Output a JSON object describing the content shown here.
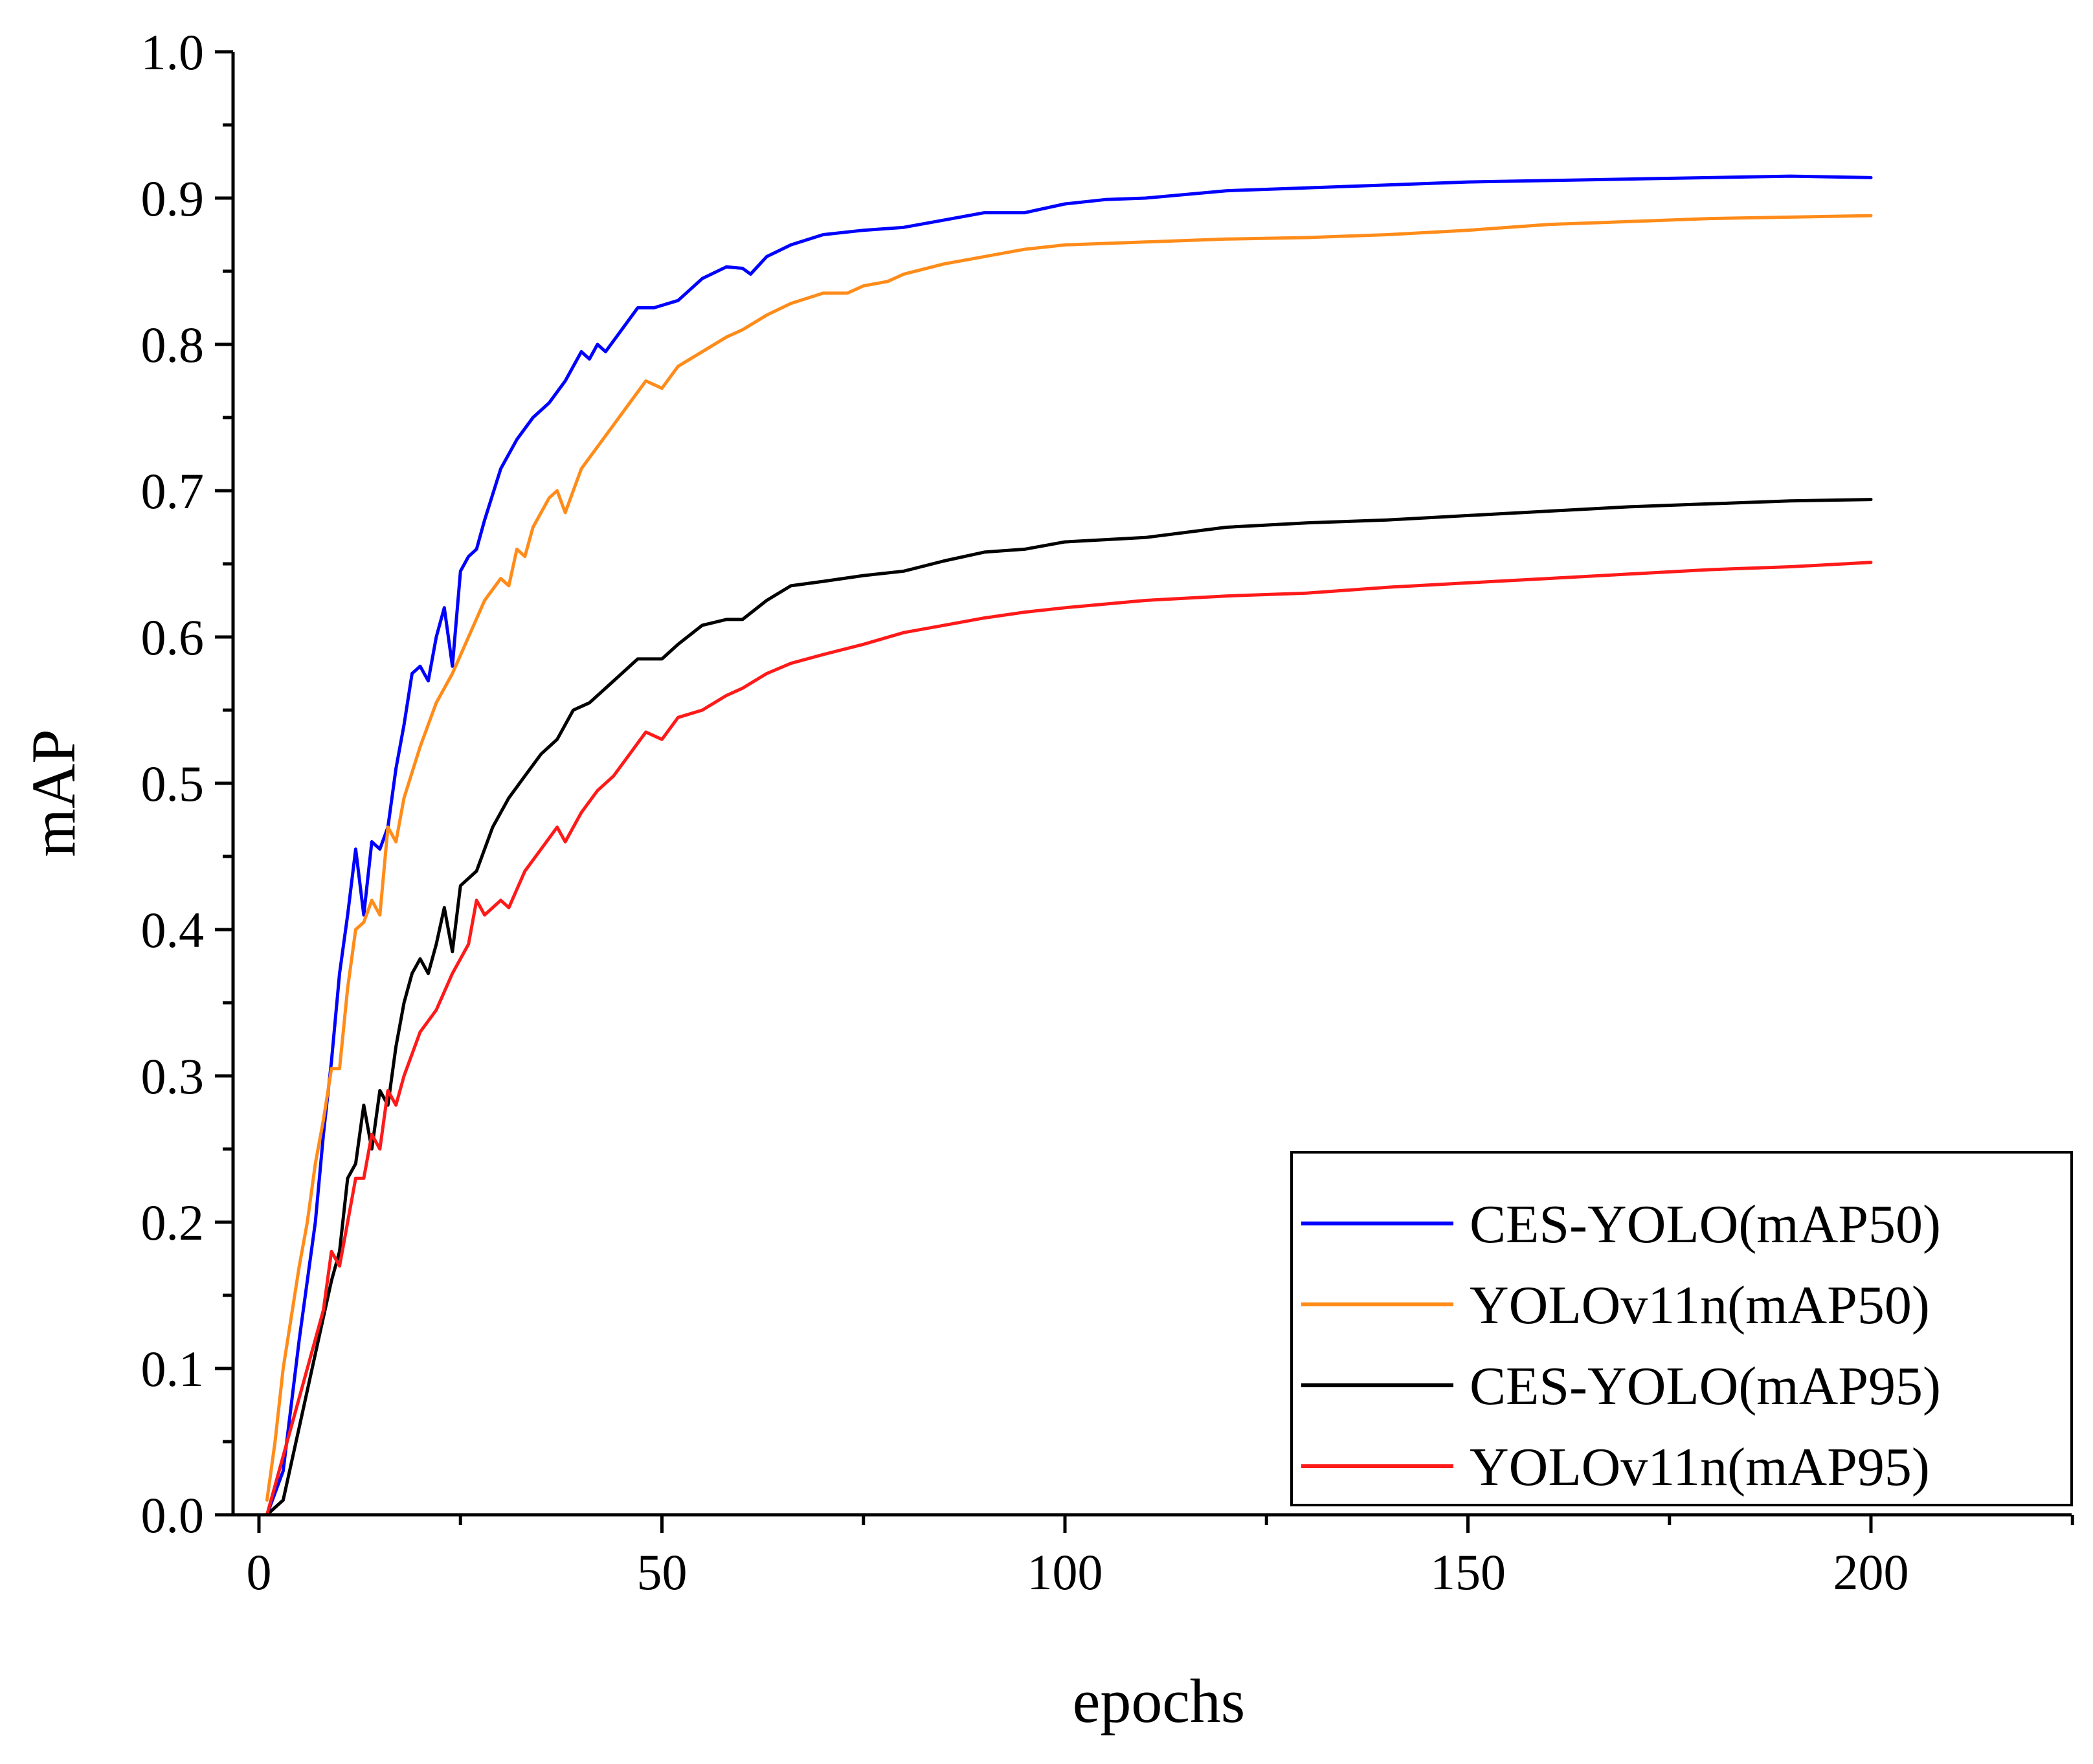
{
  "chart_data": {
    "type": "line",
    "xlabel": "epochs",
    "ylabel": "mAP",
    "xlim": [
      0,
      225
    ],
    "ylim": [
      0.0,
      1.0
    ],
    "x_ticks": [
      0,
      50,
      100,
      150,
      200
    ],
    "y_ticks": [
      0.0,
      0.1,
      0.2,
      0.3,
      0.4,
      0.5,
      0.6,
      0.7,
      0.8,
      0.9,
      1.0
    ],
    "grid": false,
    "legend_position": "bottom-right",
    "series": [
      {
        "name": "CES-YOLO(mAP50)",
        "color": "#0000ff",
        "points": [
          [
            1,
            0.0
          ],
          [
            3,
            0.03
          ],
          [
            5,
            0.12
          ],
          [
            7,
            0.2
          ],
          [
            8,
            0.26
          ],
          [
            9,
            0.31
          ],
          [
            10,
            0.37
          ],
          [
            11,
            0.41
          ],
          [
            12,
            0.455
          ],
          [
            13,
            0.41
          ],
          [
            14,
            0.46
          ],
          [
            15,
            0.455
          ],
          [
            16,
            0.47
          ],
          [
            17,
            0.51
          ],
          [
            18,
            0.54
          ],
          [
            19,
            0.575
          ],
          [
            20,
            0.58
          ],
          [
            21,
            0.57
          ],
          [
            22,
            0.6
          ],
          [
            23,
            0.62
          ],
          [
            24,
            0.58
          ],
          [
            25,
            0.645
          ],
          [
            26,
            0.655
          ],
          [
            27,
            0.66
          ],
          [
            28,
            0.68
          ],
          [
            30,
            0.715
          ],
          [
            32,
            0.735
          ],
          [
            34,
            0.75
          ],
          [
            36,
            0.76
          ],
          [
            38,
            0.775
          ],
          [
            40,
            0.795
          ],
          [
            41,
            0.79
          ],
          [
            42,
            0.8
          ],
          [
            43,
            0.795
          ],
          [
            45,
            0.81
          ],
          [
            47,
            0.825
          ],
          [
            49,
            0.825
          ],
          [
            52,
            0.83
          ],
          [
            55,
            0.845
          ],
          [
            58,
            0.853
          ],
          [
            60,
            0.852
          ],
          [
            61,
            0.848
          ],
          [
            63,
            0.86
          ],
          [
            66,
            0.868
          ],
          [
            70,
            0.875
          ],
          [
            75,
            0.878
          ],
          [
            80,
            0.88
          ],
          [
            85,
            0.885
          ],
          [
            90,
            0.89
          ],
          [
            95,
            0.89
          ],
          [
            100,
            0.896
          ],
          [
            105,
            0.899
          ],
          [
            110,
            0.9
          ],
          [
            120,
            0.905
          ],
          [
            130,
            0.907
          ],
          [
            140,
            0.909
          ],
          [
            150,
            0.911
          ],
          [
            160,
            0.912
          ],
          [
            170,
            0.913
          ],
          [
            180,
            0.914
          ],
          [
            190,
            0.915
          ],
          [
            200,
            0.914
          ]
        ]
      },
      {
        "name": "YOLOv11n(mAP50)",
        "color": "#ff8c1a",
        "points": [
          [
            1,
            0.01
          ],
          [
            2,
            0.05
          ],
          [
            3,
            0.1
          ],
          [
            5,
            0.17
          ],
          [
            6,
            0.2
          ],
          [
            7,
            0.24
          ],
          [
            8,
            0.27
          ],
          [
            9,
            0.305
          ],
          [
            10,
            0.305
          ],
          [
            11,
            0.36
          ],
          [
            12,
            0.4
          ],
          [
            13,
            0.405
          ],
          [
            14,
            0.42
          ],
          [
            15,
            0.41
          ],
          [
            16,
            0.47
          ],
          [
            17,
            0.46
          ],
          [
            18,
            0.49
          ],
          [
            20,
            0.525
          ],
          [
            22,
            0.555
          ],
          [
            24,
            0.575
          ],
          [
            26,
            0.6
          ],
          [
            28,
            0.625
          ],
          [
            30,
            0.64
          ],
          [
            31,
            0.635
          ],
          [
            32,
            0.66
          ],
          [
            33,
            0.655
          ],
          [
            34,
            0.675
          ],
          [
            36,
            0.695
          ],
          [
            37,
            0.7
          ],
          [
            38,
            0.685
          ],
          [
            40,
            0.715
          ],
          [
            42,
            0.73
          ],
          [
            44,
            0.745
          ],
          [
            46,
            0.76
          ],
          [
            48,
            0.775
          ],
          [
            50,
            0.77
          ],
          [
            52,
            0.785
          ],
          [
            55,
            0.795
          ],
          [
            58,
            0.805
          ],
          [
            60,
            0.81
          ],
          [
            63,
            0.82
          ],
          [
            66,
            0.828
          ],
          [
            70,
            0.835
          ],
          [
            73,
            0.835
          ],
          [
            75,
            0.84
          ],
          [
            78,
            0.843
          ],
          [
            80,
            0.848
          ],
          [
            85,
            0.855
          ],
          [
            90,
            0.86
          ],
          [
            95,
            0.865
          ],
          [
            100,
            0.868
          ],
          [
            110,
            0.87
          ],
          [
            120,
            0.872
          ],
          [
            130,
            0.873
          ],
          [
            140,
            0.875
          ],
          [
            150,
            0.878
          ],
          [
            160,
            0.882
          ],
          [
            170,
            0.884
          ],
          [
            180,
            0.886
          ],
          [
            190,
            0.887
          ],
          [
            200,
            0.888
          ]
        ]
      },
      {
        "name": "CES-YOLO(mAP95)",
        "color": "#000000",
        "points": [
          [
            1,
            0.0
          ],
          [
            3,
            0.01
          ],
          [
            5,
            0.06
          ],
          [
            7,
            0.11
          ],
          [
            9,
            0.16
          ],
          [
            10,
            0.18
          ],
          [
            11,
            0.23
          ],
          [
            12,
            0.24
          ],
          [
            13,
            0.28
          ],
          [
            14,
            0.25
          ],
          [
            15,
            0.29
          ],
          [
            16,
            0.28
          ],
          [
            17,
            0.32
          ],
          [
            18,
            0.35
          ],
          [
            19,
            0.37
          ],
          [
            20,
            0.38
          ],
          [
            21,
            0.37
          ],
          [
            22,
            0.39
          ],
          [
            23,
            0.415
          ],
          [
            24,
            0.385
          ],
          [
            25,
            0.43
          ],
          [
            27,
            0.44
          ],
          [
            29,
            0.47
          ],
          [
            31,
            0.49
          ],
          [
            33,
            0.505
          ],
          [
            35,
            0.52
          ],
          [
            37,
            0.53
          ],
          [
            39,
            0.55
          ],
          [
            41,
            0.555
          ],
          [
            43,
            0.565
          ],
          [
            45,
            0.575
          ],
          [
            47,
            0.585
          ],
          [
            50,
            0.585
          ],
          [
            52,
            0.595
          ],
          [
            55,
            0.608
          ],
          [
            58,
            0.612
          ],
          [
            60,
            0.612
          ],
          [
            63,
            0.625
          ],
          [
            66,
            0.635
          ],
          [
            70,
            0.638
          ],
          [
            75,
            0.642
          ],
          [
            80,
            0.645
          ],
          [
            85,
            0.652
          ],
          [
            90,
            0.658
          ],
          [
            95,
            0.66
          ],
          [
            100,
            0.665
          ],
          [
            110,
            0.668
          ],
          [
            120,
            0.675
          ],
          [
            130,
            0.678
          ],
          [
            140,
            0.68
          ],
          [
            150,
            0.683
          ],
          [
            160,
            0.686
          ],
          [
            170,
            0.689
          ],
          [
            180,
            0.691
          ],
          [
            190,
            0.693
          ],
          [
            200,
            0.694
          ]
        ]
      },
      {
        "name": "YOLOv11n(mAP95)",
        "color": "#ff1a1a",
        "points": [
          [
            1,
            0.0
          ],
          [
            2,
            0.02
          ],
          [
            4,
            0.06
          ],
          [
            6,
            0.1
          ],
          [
            8,
            0.14
          ],
          [
            9,
            0.18
          ],
          [
            10,
            0.17
          ],
          [
            11,
            0.2
          ],
          [
            12,
            0.23
          ],
          [
            13,
            0.23
          ],
          [
            14,
            0.26
          ],
          [
            15,
            0.25
          ],
          [
            16,
            0.29
          ],
          [
            17,
            0.28
          ],
          [
            18,
            0.3
          ],
          [
            20,
            0.33
          ],
          [
            22,
            0.345
          ],
          [
            24,
            0.37
          ],
          [
            26,
            0.39
          ],
          [
            27,
            0.42
          ],
          [
            28,
            0.41
          ],
          [
            30,
            0.42
          ],
          [
            31,
            0.415
          ],
          [
            33,
            0.44
          ],
          [
            35,
            0.455
          ],
          [
            37,
            0.47
          ],
          [
            38,
            0.46
          ],
          [
            40,
            0.48
          ],
          [
            42,
            0.495
          ],
          [
            44,
            0.505
          ],
          [
            46,
            0.52
          ],
          [
            48,
            0.535
          ],
          [
            50,
            0.53
          ],
          [
            52,
            0.545
          ],
          [
            55,
            0.55
          ],
          [
            58,
            0.56
          ],
          [
            60,
            0.565
          ],
          [
            63,
            0.575
          ],
          [
            66,
            0.582
          ],
          [
            70,
            0.588
          ],
          [
            75,
            0.595
          ],
          [
            80,
            0.603
          ],
          [
            85,
            0.608
          ],
          [
            90,
            0.613
          ],
          [
            95,
            0.617
          ],
          [
            100,
            0.62
          ],
          [
            110,
            0.625
          ],
          [
            120,
            0.628
          ],
          [
            130,
            0.63
          ],
          [
            140,
            0.634
          ],
          [
            150,
            0.637
          ],
          [
            160,
            0.64
          ],
          [
            170,
            0.643
          ],
          [
            180,
            0.646
          ],
          [
            190,
            0.648
          ],
          [
            200,
            0.651
          ]
        ]
      }
    ]
  }
}
